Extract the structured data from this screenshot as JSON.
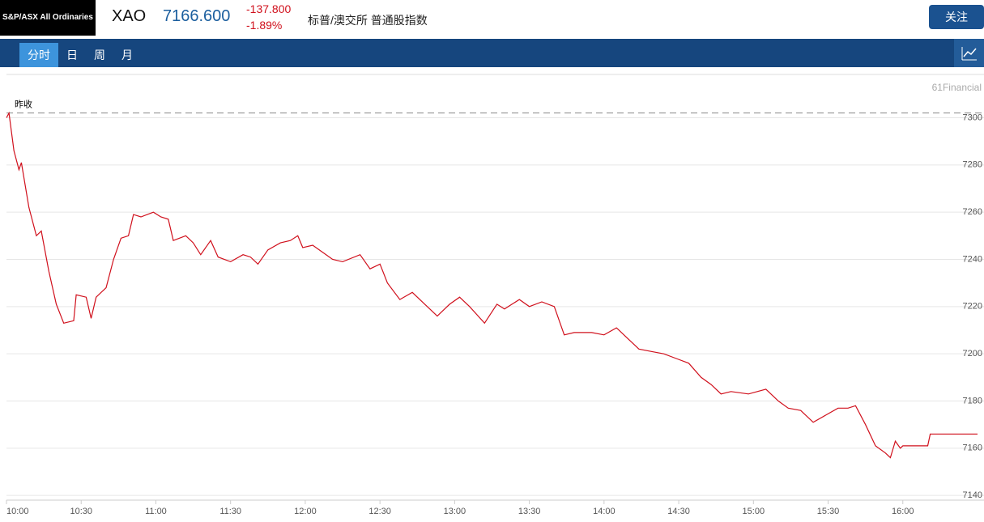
{
  "header": {
    "logo": "S&P/ASX All Ordinaries",
    "symbol": "XAO",
    "price": "7166.600",
    "change": "-137.800",
    "change_pct": "-1.89%",
    "name": "标普/澳交所 普通股指数",
    "follow_button": "关注"
  },
  "tabs": [
    "分时",
    "日",
    "周",
    "月"
  ],
  "watermark": "61Financial",
  "chart_data": {
    "type": "line",
    "color": "#d0101c",
    "grid": true,
    "reference": {
      "label": "昨收",
      "value": 7302
    },
    "x": [
      "10:00",
      "10:01",
      "10:03",
      "10:05",
      "10:06",
      "10:09",
      "10:12",
      "10:14",
      "10:17",
      "10:20",
      "10:23",
      "10:27",
      "10:28",
      "10:32",
      "10:34",
      "10:36",
      "10:40",
      "10:43",
      "10:46",
      "10:49",
      "10:51",
      "10:54",
      "10:59",
      "11:02",
      "11:05",
      "11:07",
      "11:12",
      "11:15",
      "11:18",
      "11:22",
      "11:25",
      "11:30",
      "11:35",
      "11:38",
      "11:41",
      "11:45",
      "11:50",
      "11:54",
      "11:57",
      "11:59",
      "12:03",
      "12:07",
      "12:11",
      "12:15",
      "12:22",
      "12:26",
      "12:30",
      "12:33",
      "12:38",
      "12:43",
      "12:48",
      "12:53",
      "12:58",
      "13:02",
      "13:06",
      "13:12",
      "13:17",
      "13:20",
      "13:26",
      "13:30",
      "13:35",
      "13:40",
      "13:44",
      "13:48",
      "13:55",
      "14:00",
      "14:05",
      "14:10",
      "14:14",
      "14:19",
      "14:24",
      "14:29",
      "14:34",
      "14:39",
      "14:43",
      "14:47",
      "14:51",
      "14:58",
      "15:05",
      "15:10",
      "15:14",
      "15:19",
      "15:24",
      "15:29",
      "15:34",
      "15:38",
      "15:41",
      "15:45",
      "15:49",
      "15:53",
      "15:55",
      "15:57",
      "15:59",
      "16:00",
      "16:10",
      "16:11",
      "16:30"
    ],
    "values": [
      7300,
      7302,
      7286,
      7278,
      7281,
      7262,
      7250,
      7252,
      7235,
      7221,
      7213,
      7214,
      7225,
      7224,
      7215,
      7224,
      7228,
      7240,
      7249,
      7250,
      7259,
      7258,
      7260,
      7258,
      7257,
      7248,
      7250,
      7247,
      7242,
      7248,
      7241,
      7239,
      7242,
      7241,
      7238,
      7244,
      7247,
      7248,
      7250,
      7245,
      7246,
      7243,
      7240,
      7239,
      7242,
      7236,
      7238,
      7230,
      7223,
      7226,
      7221,
      7216,
      7221,
      7224,
      7220,
      7213,
      7221,
      7219,
      7223,
      7220,
      7222,
      7220,
      7208,
      7209,
      7209,
      7208,
      7211,
      7206,
      7202,
      7201,
      7200,
      7198,
      7196,
      7190,
      7187,
      7183,
      7184,
      7183,
      7185,
      7180,
      7177,
      7176,
      7171,
      7174,
      7177,
      7177,
      7178,
      7170,
      7161,
      7158,
      7156,
      7163,
      7160,
      7161,
      7161,
      7166,
      7166
    ],
    "xlim": [
      "10:00",
      "16:30"
    ],
    "xticks": [
      "10:00",
      "10:30",
      "11:00",
      "11:30",
      "12:00",
      "12:30",
      "13:00",
      "13:30",
      "14:00",
      "14:30",
      "15:00",
      "15:30",
      "16:00"
    ],
    "ylim": [
      7138,
      7318
    ],
    "yticks": [
      7140,
      7160,
      7180,
      7200,
      7220,
      7240,
      7260,
      7280,
      7300
    ]
  }
}
